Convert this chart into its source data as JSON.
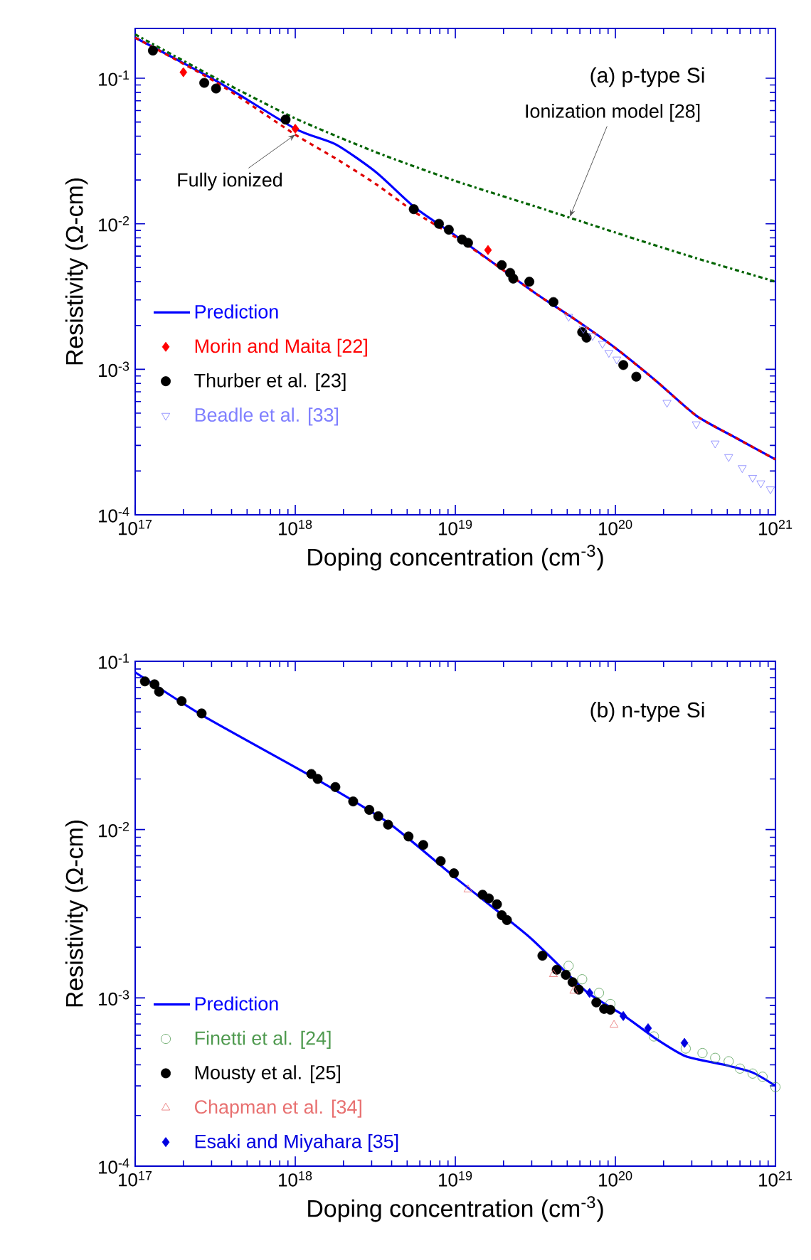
{
  "chart_data": [
    {
      "type": "scatter",
      "xlabel": "Doping concentration (cm$^{-3}$)",
      "ylabel": "Resistivity (Ω-cm)",
      "log": "xy",
      "legend": "left",
      "xlim": [
        1e+17,
        1e+21
      ],
      "ylim": [
        0.0001,
        0.22
      ],
      "xticks": [
        {
          "value": 1e+17,
          "label": "10$^{17}$"
        },
        {
          "value": 1e+18,
          "label": "10$^{18}$"
        },
        {
          "value": 1e+19,
          "label": "10$^{19}$"
        },
        {
          "value": 1e+20,
          "label": "10$^{20}$"
        },
        {
          "value": 1e+21,
          "label": "10$^{21}$"
        }
      ],
      "yticks": [
        {
          "value": 0.0001,
          "label": "10$^{-4}$"
        },
        {
          "value": 0.001,
          "label": "10$^{-3}$"
        },
        {
          "value": 0.01,
          "label": "10$^{-2}$"
        },
        {
          "value": 0.1,
          "label": "10$^{-1}$"
        }
      ],
      "annotations": [
        "(a) p-type Si",
        {
          "text": "Fully ionized",
          "x": 1e+18,
          "y": 0.041
        },
        {
          "text": "Ionization model [28]",
          "x": 5.2e+19,
          "y": 0.0112
        }
      ],
      "series": [
        {
          "name": "Prediction",
          "type": "line",
          "line_style": "solid",
          "color": "#0000ff",
          "x": [
            1e+17,
            3.2e+17,
            1e+18,
            1.8e+18,
            3.2e+18,
            5.6e+18,
            1e+19,
            1.8e+19,
            3.2e+19,
            5.6e+19,
            1e+20,
            1.8e+20,
            3.2e+20,
            5.6e+20,
            1e+21
          ],
          "values": [
            0.19,
            0.096,
            0.045,
            0.035,
            0.0226,
            0.0129,
            0.0083,
            0.0052,
            0.0033,
            0.0022,
            0.0014,
            0.00083,
            0.00048,
            0.00034,
            0.00024
          ]
        },
        {
          "type": "line",
          "line_style": "dashed",
          "color": "#e00000",
          "x": [
            1e+17,
            3.2e+17,
            1e+18,
            1.8e+18,
            3.2e+18,
            5.6e+18,
            1e+19,
            1.8e+19,
            3.2e+19,
            5.6e+19,
            1e+20,
            1.8e+20,
            3.2e+20,
            5.6e+20,
            1e+21
          ],
          "values": [
            0.19,
            0.094,
            0.041,
            0.028,
            0.0187,
            0.012,
            0.0081,
            0.0052,
            0.0033,
            0.0022,
            0.0014,
            0.00083,
            0.00048,
            0.00034,
            0.00024
          ]
        },
        {
          "type": "line",
          "line_style": "dashdot",
          "color": "#006400",
          "x": [
            1e+17,
            3.2e+17,
            1e+18,
            3.2e+18,
            1e+19,
            3.2e+19,
            1e+20,
            3.2e+20,
            1e+21
          ],
          "values": [
            0.2,
            0.1,
            0.053,
            0.031,
            0.0197,
            0.0131,
            0.0087,
            0.0058,
            0.004
          ]
        },
        {
          "name": "Morin and Maita [22]",
          "marker": "diamond",
          "color": "#ff0000",
          "x": [
            2e+17,
            1e+18,
            1.6e+19
          ],
          "values": [
            0.11,
            0.045,
            0.0066
          ]
        },
        {
          "name": "Thurber et al. [23]",
          "marker": "circle",
          "color": "#000000",
          "x": [
            1.29e+17,
            2.7e+17,
            3.2e+17,
            8.7e+17,
            5.5e+18,
            7.9e+18,
            9.1e+18,
            1.1e+19,
            1.2e+19,
            1.95e+19,
            2.2e+19,
            2.3e+19,
            2.9e+19,
            4.1e+19,
            6.2e+19,
            6.6e+19,
            1.12e+20,
            1.35e+20
          ],
          "values": [
            0.155,
            0.093,
            0.085,
            0.052,
            0.0126,
            0.01,
            0.0091,
            0.0078,
            0.0074,
            0.0052,
            0.0046,
            0.0042,
            0.004,
            0.0029,
            0.0018,
            0.00165,
            0.00107,
            0.00089
          ]
        },
        {
          "name": "Beadle et al. [33]",
          "marker": "triangle_down_open",
          "color": "#7f7fff",
          "x": [
            5.1e+19,
            6.3e+19,
            7.2e+19,
            8.3e+19,
            9.1e+19,
            1.02e+20,
            2.1e+20,
            3.2e+20,
            4.2e+20,
            5.1e+20,
            6.2e+20,
            7.2e+20,
            8.1e+20,
            9.3e+20
          ],
          "values": [
            0.0023,
            0.0019,
            0.0017,
            0.0015,
            0.0013,
            0.00117,
            0.00059,
            0.00042,
            0.00031,
            0.00025,
            0.00021,
            0.00018,
            0.000165,
            0.00015
          ]
        }
      ]
    },
    {
      "type": "scatter",
      "xlabel": "Doping concentration (cm$^{-3}$)",
      "ylabel": "Resistivity (Ω-cm)",
      "log": "xy",
      "legend": "bottom left",
      "xlim": [
        1e+17,
        1e+21
      ],
      "ylim": [
        0.0001,
        0.1
      ],
      "xticks": [
        {
          "value": 1e+17,
          "label": "10$^{17}$"
        },
        {
          "value": 1e+18,
          "label": "10$^{18}$"
        },
        {
          "value": 1e+19,
          "label": "10$^{19}$"
        },
        {
          "value": 1e+20,
          "label": "10$^{20}$"
        },
        {
          "value": 1e+21,
          "label": "10$^{21}$"
        }
      ],
      "yticks": [
        {
          "value": 0.0001,
          "label": "10$^{-4}$"
        },
        {
          "value": 0.001,
          "label": "10$^{-3}$"
        },
        {
          "value": 0.01,
          "label": "10$^{-2}$"
        },
        {
          "value": 0.1,
          "label": "10$^{-1}$"
        }
      ],
      "annotations": [
        "(b) n-type Si"
      ],
      "series": [
        {
          "name": "Prediction",
          "type": "line",
          "line_style": "solid",
          "color": "#0000ff",
          "x": [
            1e+17,
            2.7e+17,
            1.23e+18,
            3.8e+18,
            1.02e+19,
            2.9e+19,
            6.5e+19,
            1.12e+20,
            1.8e+20,
            2.75e+20,
            4.8e+20,
            7.2e+20,
            1e+21
          ],
          "values": [
            0.086,
            0.047,
            0.021,
            0.011,
            0.0051,
            0.0023,
            0.0011,
            0.00079,
            0.00057,
            0.00045,
            0.0004,
            0.00036,
            0.0003
          ]
        },
        {
          "name": "Finetti et al. [24]",
          "marker": "circle_open",
          "color": "#4f9a4f",
          "x": [
            5.1e+19,
            6.2e+19,
            7.9e+19,
            9.3e+19,
            1.74e+20,
            2.75e+20,
            3.5e+20,
            4.2e+20,
            5.1e+20,
            6e+20,
            7.2e+20,
            8.3e+20,
            1e+21
          ],
          "values": [
            0.00155,
            0.00129,
            0.00107,
            0.00092,
            0.00059,
            0.0005,
            0.00047,
            0.00044,
            0.00042,
            0.00038,
            0.000355,
            0.00034,
            0.000295
          ]
        },
        {
          "name": "Mousty et al. [25]",
          "marker": "circle",
          "color": "#000000",
          "x": [
            1.15e+17,
            1.32e+17,
            1.41e+17,
            1.95e+17,
            2.6e+17,
            1.26e+18,
            1.38e+18,
            1.78e+18,
            2.3e+18,
            2.9e+18,
            3.3e+18,
            3.8e+18,
            5.1e+18,
            6.3e+18,
            8.1e+18,
            9.8e+18,
            1.48e+19,
            1.62e+19,
            1.82e+19,
            1.95e+19,
            2.1e+19,
            3.5e+19,
            4.3e+19,
            4.9e+19,
            5.4e+19,
            5.9e+19,
            7.6e+19,
            8.5e+19,
            9.3e+19
          ],
          "values": [
            0.076,
            0.073,
            0.066,
            0.058,
            0.049,
            0.0214,
            0.02,
            0.0179,
            0.0147,
            0.0131,
            0.012,
            0.0107,
            0.0091,
            0.0081,
            0.0065,
            0.0055,
            0.0041,
            0.0039,
            0.0036,
            0.0031,
            0.0029,
            0.00178,
            0.00147,
            0.00137,
            0.00124,
            0.00112,
            0.00094,
            0.00086,
            0.00085
          ]
        },
        {
          "name": "Chapman et al. [34]",
          "marker": "triangle_open",
          "color": "#e87070",
          "x": [
            1.2e+19,
            4.1e+19,
            5.5e+19,
            9.8e+19
          ],
          "values": [
            0.0044,
            0.00138,
            0.0011,
            0.00069
          ]
        },
        {
          "name": "Esaki and Miyahara [35]",
          "marker": "diamond",
          "color": "#0000e0",
          "x": [
            6.9e+19,
            1.12e+20,
            1.6e+20,
            2.7e+20
          ],
          "values": [
            0.00107,
            0.00078,
            0.00066,
            0.00054
          ]
        }
      ]
    }
  ]
}
